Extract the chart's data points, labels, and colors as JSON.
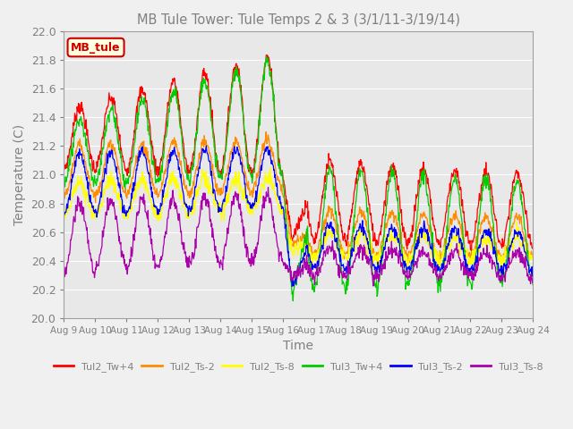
{
  "title": "MB Tule Tower: Tule Temps 2 & 3 (3/1/11-3/19/14)",
  "xlabel": "Time",
  "ylabel": "Temperature (C)",
  "ylim": [
    20.0,
    22.0
  ],
  "yticks": [
    20.0,
    20.2,
    20.4,
    20.6,
    20.8,
    21.0,
    21.2,
    21.4,
    21.6,
    21.8,
    22.0
  ],
  "xtick_labels": [
    "Aug 9",
    "Aug 10",
    "Aug 11",
    "Aug 12",
    "Aug 13",
    "Aug 14",
    "Aug 15",
    "Aug 16",
    "Aug 17",
    "Aug 18",
    "Aug 19",
    "Aug 20",
    "Aug 21",
    "Aug 22",
    "Aug 23",
    "Aug 24"
  ],
  "legend_labels": [
    "Tul2_Tw+4",
    "Tul2_Ts-2",
    "Tul2_Ts-8",
    "Tul3_Tw+4",
    "Tul3_Ts-2",
    "Tul3_Ts-8"
  ],
  "colors": [
    "#ff0000",
    "#ff8c00",
    "#ffff00",
    "#00cc00",
    "#0000ff",
    "#aa00aa"
  ],
  "watermark_text": "MB_tule",
  "watermark_color": "#cc0000",
  "background_color": "#e8e8e8",
  "grid_color": "#ffffff",
  "title_color": "#808080",
  "axis_label_color": "#808080",
  "tick_color": "#808080",
  "fig_facecolor": "#f0f0f0"
}
